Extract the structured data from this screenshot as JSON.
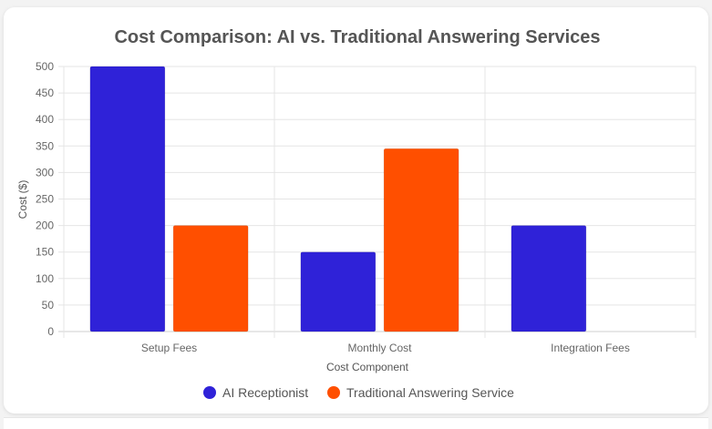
{
  "chart_data": {
    "type": "bar",
    "title": "Cost Comparison: AI vs. Traditional Answering Services",
    "xlabel": "Cost Component",
    "ylabel": "Cost ($)",
    "categories": [
      "Setup Fees",
      "Monthly Cost",
      "Integration Fees"
    ],
    "series": [
      {
        "name": "AI Receptionist",
        "values": [
          500,
          150,
          200
        ],
        "color": "#2f22d8"
      },
      {
        "name": "Traditional Answering Service",
        "values": [
          200,
          345,
          0
        ],
        "color": "#ff4f00"
      }
    ],
    "ylim": [
      0,
      500
    ],
    "yticks": [
      "0",
      "50",
      "100",
      "150",
      "200",
      "250",
      "300",
      "350",
      "400",
      "450",
      "500"
    ],
    "grid": true,
    "legend_position": "bottom"
  }
}
